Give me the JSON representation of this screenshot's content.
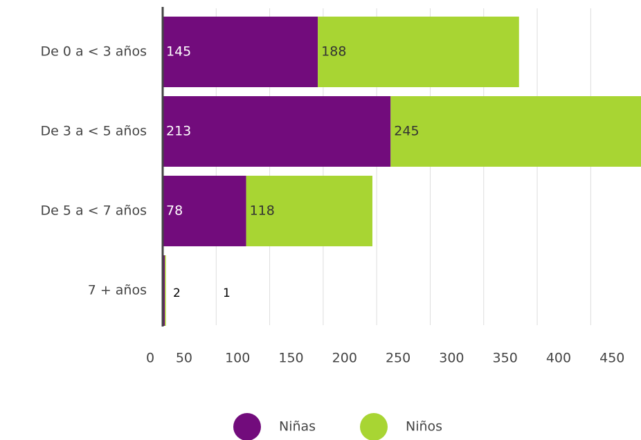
{
  "chart_data": {
    "type": "stacked-barh",
    "categories": [
      "De 0 a < 3 años",
      "De 3 a < 5 años",
      "De 5 a < 7 años",
      "7 + años"
    ],
    "series": [
      {
        "name": "Niñas",
        "color": "#720c7c",
        "values": [
          145,
          213,
          78,
          2
        ]
      },
      {
        "name": "Niños",
        "color": "#a8d533",
        "values": [
          188,
          245,
          118,
          1
        ]
      }
    ],
    "xlim": [
      0,
      447
    ],
    "xticks": [
      0,
      50,
      100,
      150,
      200,
      250,
      300,
      350,
      400,
      450
    ],
    "grid": true,
    "legend": "bottom"
  }
}
